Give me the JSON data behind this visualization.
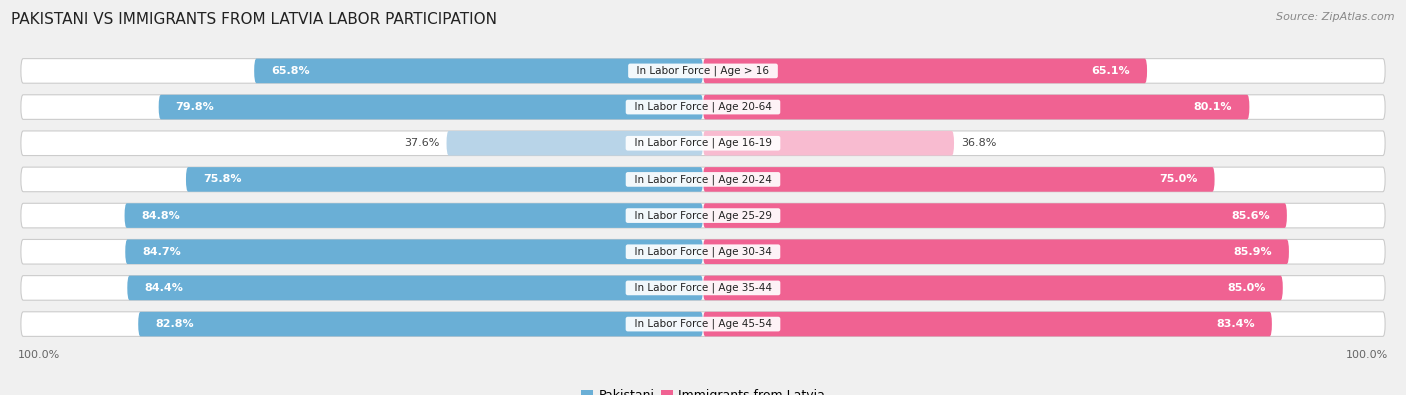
{
  "title": "PAKISTANI VS IMMIGRANTS FROM LATVIA LABOR PARTICIPATION",
  "source": "Source: ZipAtlas.com",
  "categories": [
    "In Labor Force | Age > 16",
    "In Labor Force | Age 20-64",
    "In Labor Force | Age 16-19",
    "In Labor Force | Age 20-24",
    "In Labor Force | Age 25-29",
    "In Labor Force | Age 30-34",
    "In Labor Force | Age 35-44",
    "In Labor Force | Age 45-54"
  ],
  "pakistani": [
    65.8,
    79.8,
    37.6,
    75.8,
    84.8,
    84.7,
    84.4,
    82.8
  ],
  "latvia": [
    65.1,
    80.1,
    36.8,
    75.0,
    85.6,
    85.9,
    85.0,
    83.4
  ],
  "pakistani_color_full": "#6aafd6",
  "pakistani_color_light": "#b8d4e8",
  "latvia_color_full": "#f06292",
  "latvia_color_light": "#f8bbd0",
  "bar_height": 0.68,
  "max_value": 100.0,
  "background_color": "#f0f0f0",
  "bar_bg_color": "#ffffff",
  "title_fontsize": 11,
  "source_fontsize": 8,
  "label_fontsize": 8,
  "category_fontsize": 7.5,
  "legend_fontsize": 9,
  "axis_label_fontsize": 8,
  "bar_gap": 0.08
}
